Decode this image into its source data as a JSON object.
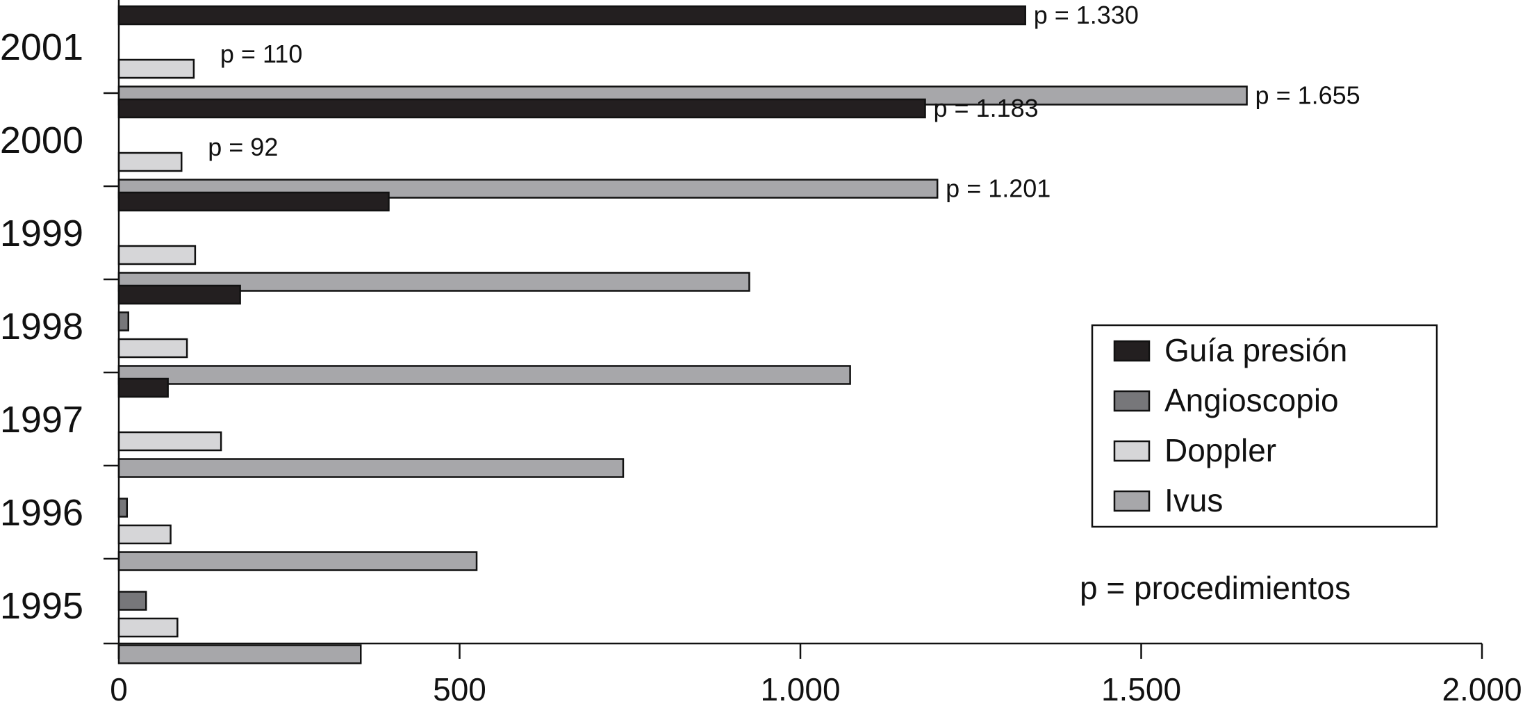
{
  "chart_data": {
    "type": "bar",
    "orientation": "horizontal",
    "categories": [
      "2001",
      "2000",
      "1999",
      "1998",
      "1997",
      "1996",
      "1995"
    ],
    "series": [
      {
        "name": "Guía presión",
        "color": "#231f20",
        "values": [
          1330,
          1183,
          396,
          178,
          72,
          0,
          0
        ]
      },
      {
        "name": "Angioscopio",
        "color": "#77777a",
        "values": [
          0,
          0,
          0,
          14,
          0,
          12,
          40
        ]
      },
      {
        "name": "Doppler",
        "color": "#d6d6d8",
        "values": [
          110,
          92,
          112,
          100,
          150,
          76,
          86
        ]
      },
      {
        "name": "Ivus",
        "color": "#a7a7aa",
        "values": [
          1655,
          1201,
          925,
          1073,
          740,
          525,
          355
        ]
      }
    ],
    "data_labels": [
      {
        "category": "2001",
        "series": "Guía presión",
        "text": "p = 1.330"
      },
      {
        "category": "2001",
        "series": "Doppler",
        "text": "p = 110"
      },
      {
        "category": "2001",
        "series": "Ivus",
        "text": "p = 1.655"
      },
      {
        "category": "2000",
        "series": "Guía presión",
        "text": "p = 1.183"
      },
      {
        "category": "2000",
        "series": "Doppler",
        "text": "p = 92"
      },
      {
        "category": "2000",
        "series": "Ivus",
        "text": "p = 1.201"
      }
    ],
    "xlim": [
      0,
      2000
    ],
    "xticks": [
      0,
      500,
      1000,
      1500,
      2000
    ],
    "xtick_labels": [
      "0",
      "500",
      "1.000",
      "1.500",
      "2.000"
    ],
    "title": "",
    "xlabel": "",
    "ylabel": "",
    "grid": false,
    "legend_position": "right",
    "note": "p = procedimientos"
  }
}
